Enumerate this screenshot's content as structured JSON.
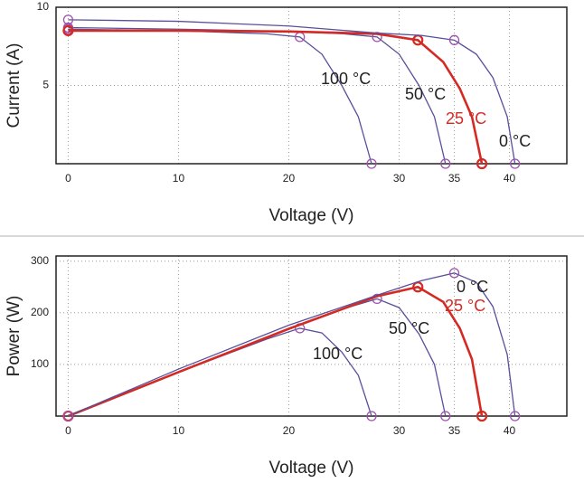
{
  "chart_data": [
    {
      "type": "line",
      "x_label": "Voltage (V)",
      "y_label": "Current (A)",
      "xlim": [
        -1.1,
        45.2
      ],
      "xticks": [
        0,
        10,
        20,
        30,
        35,
        40
      ],
      "ylim": [
        0,
        10
      ],
      "yticks": [
        5,
        10
      ],
      "grid": true,
      "series": [
        {
          "name": "100 °C",
          "color": "#58509a",
          "marker_color": "#a050b0",
          "x": [
            0,
            10,
            18,
            21,
            23,
            24.8,
            26.3,
            27.5
          ],
          "values": [
            8.6,
            8.5,
            8.3,
            8.1,
            7.0,
            5.0,
            3.0,
            0
          ],
          "marker_x": [
            0,
            21,
            27.5
          ],
          "marker_y": [
            8.6,
            8.1,
            0
          ]
        },
        {
          "name": "50 °C",
          "color": "#58509a",
          "marker_color": "#a050b0",
          "x": [
            0,
            10,
            20,
            25,
            28,
            30,
            31.8,
            33.2,
            34.2
          ],
          "values": [
            8.7,
            8.6,
            8.45,
            8.3,
            8.1,
            7.0,
            5.0,
            3.0,
            0
          ],
          "marker_x": [
            0,
            28,
            34.2
          ],
          "marker_y": [
            8.7,
            8.1,
            0
          ]
        },
        {
          "name": "25 °C",
          "color": "#d42a24",
          "marker_color": "#d42a24",
          "x": [
            0,
            10,
            20,
            28,
            31.7,
            34,
            35.5,
            36.6,
            37.5
          ],
          "values": [
            8.5,
            8.5,
            8.45,
            8.3,
            7.9,
            6.5,
            4.8,
            3.0,
            0
          ],
          "marker_x": [
            0,
            31.7,
            37.5
          ],
          "marker_y": [
            8.5,
            7.9,
            0
          ]
        },
        {
          "name": "0 °C",
          "color": "#58509a",
          "marker_color": "#a050b0",
          "x": [
            0,
            10,
            20,
            28,
            32,
            35,
            37,
            38.5,
            39.8,
            40.5
          ],
          "values": [
            9.2,
            9.1,
            8.8,
            8.35,
            8.2,
            7.9,
            7.0,
            5.5,
            3.0,
            0
          ],
          "marker_x": [
            0,
            35,
            40.5
          ],
          "marker_y": [
            9.2,
            7.9,
            0
          ]
        }
      ]
    },
    {
      "type": "line",
      "x_label": "Voltage (V)",
      "y_label": "Power (W)",
      "xlim": [
        -1.1,
        45.2
      ],
      "xticks": [
        0,
        10,
        20,
        30,
        35,
        40
      ],
      "ylim": [
        0,
        310
      ],
      "yticks": [
        100,
        200,
        300
      ],
      "grid": true,
      "series": [
        {
          "name": "100 °C",
          "color": "#58509a",
          "marker_color": "#a050b0",
          "x": [
            0,
            10,
            18,
            21,
            23,
            24.8,
            26.3,
            27.5
          ],
          "values": [
            0,
            85,
            149,
            170,
            161,
            124,
            79,
            0
          ],
          "marker_x": [
            0,
            21,
            27.5
          ],
          "marker_y": [
            0,
            170,
            0
          ]
        },
        {
          "name": "50 °C",
          "color": "#58509a",
          "marker_color": "#a050b0",
          "x": [
            0,
            10,
            20,
            25,
            28,
            30,
            31.8,
            33.2,
            34.2
          ],
          "values": [
            0,
            86,
            169,
            208,
            227,
            210,
            159,
            100,
            0
          ],
          "marker_x": [
            0,
            28,
            34.2
          ],
          "marker_y": [
            0,
            227,
            0
          ]
        },
        {
          "name": "25 °C",
          "color": "#d42a24",
          "marker_color": "#d42a24",
          "x": [
            0,
            10,
            20,
            28,
            31.7,
            34,
            35.5,
            36.6,
            37.5
          ],
          "values": [
            0,
            85,
            169,
            232,
            250,
            221,
            170,
            110,
            0
          ],
          "marker_x": [
            0,
            31.7,
            37.5
          ],
          "marker_y": [
            0,
            250,
            0
          ]
        },
        {
          "name": "0 °C",
          "color": "#58509a",
          "marker_color": "#a050b0",
          "x": [
            0,
            10,
            20,
            28,
            32,
            35,
            37,
            38.5,
            39.8,
            40.5
          ],
          "values": [
            0,
            91,
            176,
            234,
            262,
            277,
            259,
            212,
            119,
            0
          ],
          "marker_x": [
            0,
            35,
            40.5
          ],
          "marker_y": [
            0,
            277,
            0
          ]
        }
      ]
    }
  ]
}
